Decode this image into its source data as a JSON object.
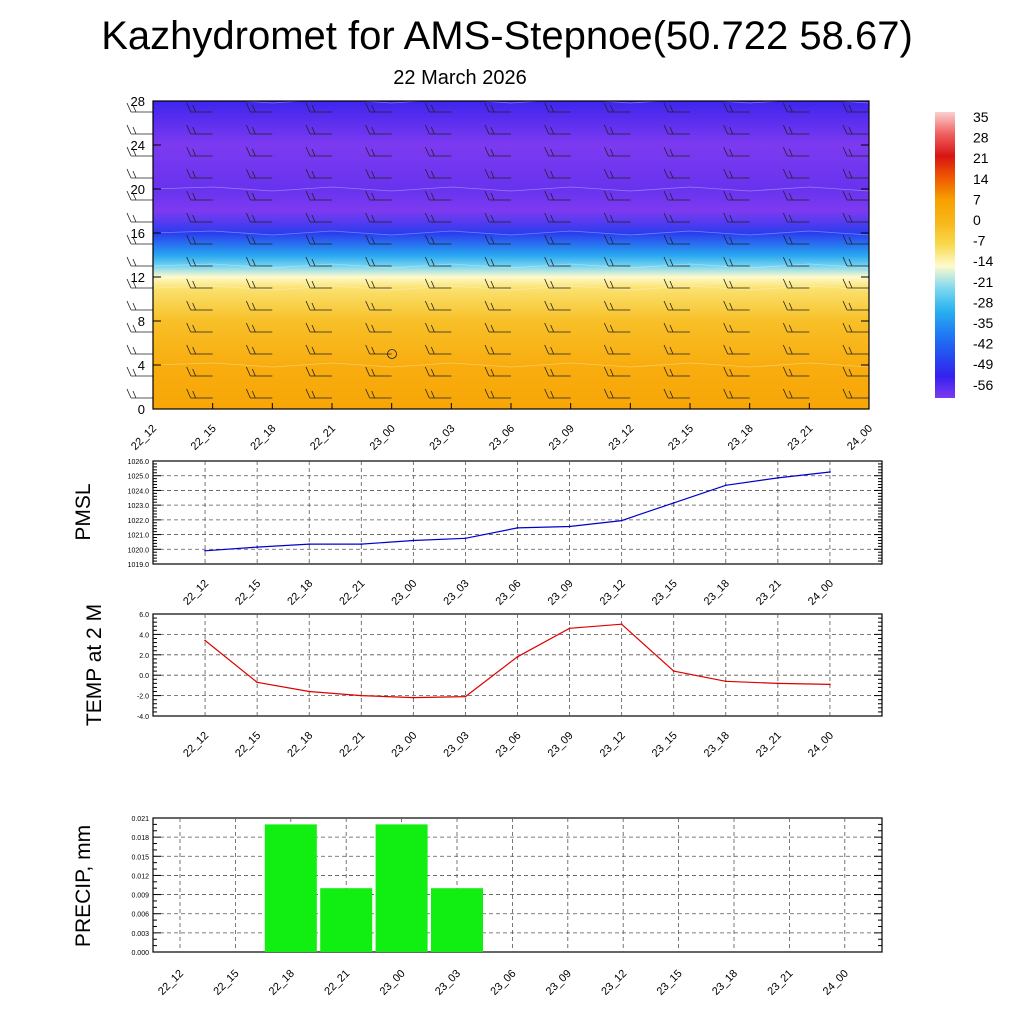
{
  "title": "Kazhydromet for AMS-Stepnoe(50.722 58.67)",
  "subtitle": "22 March 2026",
  "time_labels": [
    "22_12",
    "22_15",
    "22_18",
    "22_21",
    "23_00",
    "23_03",
    "23_06",
    "23_09",
    "23_12",
    "23_15",
    "23_18",
    "23_21",
    "24_00"
  ],
  "colors": {
    "pmsl_line": "#0000cc",
    "temp_line": "#dd0000",
    "precip_bar": "#11ee11",
    "grid": "#555555"
  },
  "chart_data": [
    {
      "id": "height-time-section",
      "type": "heatmap",
      "title": "",
      "ylabel": "",
      "y_ticks": [
        0,
        4,
        8,
        12,
        16,
        20,
        24,
        28
      ],
      "ylim": [
        0,
        28
      ],
      "x": [
        "22_12",
        "22_15",
        "22_18",
        "22_21",
        "23_00",
        "23_03",
        "23_06",
        "23_09",
        "23_12",
        "23_15",
        "23_18",
        "23_21",
        "24_00"
      ],
      "temperature_profile": [
        {
          "height": 0,
          "temp": 5
        },
        {
          "height": 4,
          "temp": 3
        },
        {
          "height": 8,
          "temp": -2
        },
        {
          "height": 11,
          "temp": -9
        },
        {
          "height": 12,
          "temp": -14
        },
        {
          "height": 13,
          "temp": -22
        },
        {
          "height": 14,
          "temp": -30
        },
        {
          "height": 16,
          "temp": -45
        },
        {
          "height": 18,
          "temp": -57
        },
        {
          "height": 20,
          "temp": -54
        },
        {
          "height": 24,
          "temp": -57
        },
        {
          "height": 28,
          "temp": -50
        }
      ],
      "wind_barbs": "wind barbs at every 3-hour time step on each height level",
      "colorbar": {
        "labels": [
          "35",
          "28",
          "21",
          "14",
          "7",
          "0",
          "-7",
          "-14",
          "-21",
          "-28",
          "-35",
          "-42",
          "-49",
          "-56"
        ],
        "values": [
          35,
          28,
          21,
          14,
          7,
          0,
          -7,
          -14,
          -21,
          -28,
          -35,
          -42,
          -49,
          -56
        ]
      }
    },
    {
      "id": "pmsl",
      "type": "line",
      "ylabel": "PMSL",
      "ylim": [
        1019.0,
        1026.0
      ],
      "y_ticks": [
        "1019.0",
        "1020.0",
        "1021.0",
        "1022.0",
        "1023.0",
        "1024.0",
        "1025.0",
        "1026.0"
      ],
      "x": [
        "22_12",
        "22_15",
        "22_18",
        "22_21",
        "23_00",
        "23_03",
        "23_06",
        "23_09",
        "23_12",
        "23_15",
        "23_18",
        "23_21",
        "24_00"
      ],
      "series": [
        {
          "name": "PMSL",
          "values": [
            1019.9,
            1020.15,
            1020.35,
            1020.35,
            1020.6,
            1020.75,
            1021.45,
            1021.55,
            1021.95,
            1023.15,
            1024.35,
            1024.85,
            1025.25
          ]
        }
      ]
    },
    {
      "id": "temp",
      "type": "line",
      "ylabel": "TEMP at 2 M",
      "ylim": [
        -4.0,
        6.0
      ],
      "y_ticks": [
        "-4.0",
        "-2.0",
        "0.0",
        "2.0",
        "4.0",
        "6.0"
      ],
      "x": [
        "22_12",
        "22_15",
        "22_18",
        "22_21",
        "23_00",
        "23_03",
        "23_06",
        "23_09",
        "23_12",
        "23_15",
        "23_18",
        "23_21",
        "24_00"
      ],
      "series": [
        {
          "name": "TEMP at 2 M",
          "values": [
            3.4,
            -0.7,
            -1.6,
            -2.0,
            -2.2,
            -2.1,
            1.8,
            4.6,
            5.0,
            0.4,
            -0.6,
            -0.8,
            -0.9
          ]
        }
      ]
    },
    {
      "id": "precip",
      "type": "bar",
      "ylabel": "PRECIP, mm",
      "ylim": [
        0.0,
        0.021
      ],
      "y_ticks": [
        "0.000",
        "0.003",
        "0.006",
        "0.009",
        "0.012",
        "0.015",
        "0.018",
        "0.021"
      ],
      "categories": [
        "22_12",
        "22_15",
        "22_18",
        "22_21",
        "23_00",
        "23_03",
        "23_06",
        "23_09",
        "23_12",
        "23_15",
        "23_18",
        "23_21",
        "24_00"
      ],
      "series": [
        {
          "name": "PRECIP, mm",
          "values": [
            0,
            0,
            0.02,
            0.01,
            0.02,
            0.01,
            0,
            0,
            0,
            0,
            0,
            0,
            0
          ]
        }
      ]
    }
  ]
}
